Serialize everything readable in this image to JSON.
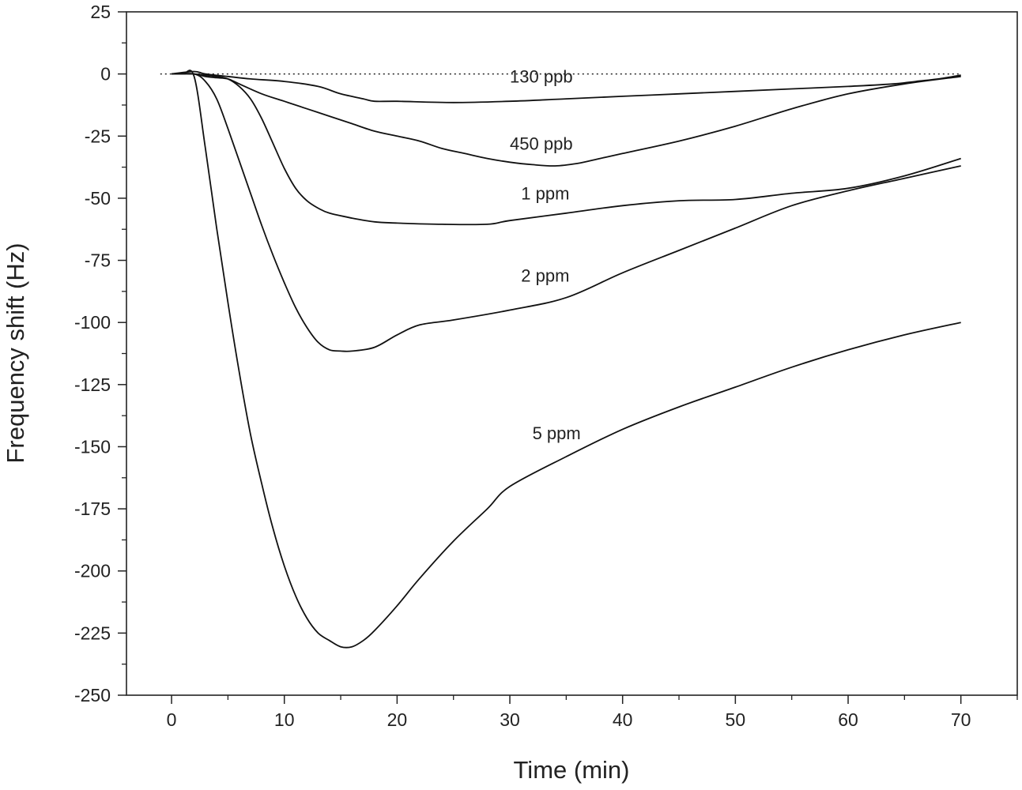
{
  "chart_data": {
    "type": "line",
    "title": "",
    "xlabel": "Time (min)",
    "ylabel": "Frequency shift (Hz)",
    "xlim": [
      -4,
      75
    ],
    "ylim": [
      -250,
      25
    ],
    "xticks": [
      0,
      10,
      20,
      30,
      40,
      50,
      60,
      70
    ],
    "yticks": [
      25,
      0,
      -25,
      -50,
      -75,
      -100,
      -125,
      -150,
      -175,
      -200,
      -225,
      -250
    ],
    "xtick_labels": [
      "0",
      "10",
      "20",
      "30",
      "40",
      "50",
      "60",
      "70"
    ],
    "ytick_labels": [
      "25",
      "0",
      "-25",
      "-50",
      "-75",
      "-100",
      "-125",
      "-150",
      "-175",
      "-200",
      "-225",
      "-250"
    ],
    "grid": false,
    "baseline": {
      "y": 0,
      "x_range": [
        -1,
        70
      ],
      "style": "dotted"
    },
    "series": [
      {
        "name": "130 ppb",
        "label_at": [
          30,
          -3.5
        ],
        "x": [
          0,
          2,
          3,
          5,
          7,
          10,
          13,
          15,
          17,
          18,
          20,
          25,
          30,
          35,
          40,
          45,
          50,
          55,
          60,
          64,
          66,
          68,
          70
        ],
        "y": [
          0,
          1,
          0,
          -1,
          -2,
          -3,
          -5,
          -8,
          -10,
          -11,
          -11,
          -11.5,
          -11,
          -10,
          -9,
          -8,
          -7,
          -6,
          -5,
          -4,
          -3,
          -2,
          -0.5
        ]
      },
      {
        "name": "450 ppb",
        "label_at": [
          30,
          -30.5
        ],
        "x": [
          0,
          2,
          3,
          4,
          5,
          6,
          8,
          10,
          12,
          14,
          16,
          18,
          20,
          22,
          24,
          26,
          28,
          30,
          32,
          34,
          36,
          38,
          40,
          45,
          50,
          55,
          60,
          65,
          70
        ],
        "y": [
          0,
          0,
          -1,
          -1.5,
          -2,
          -4,
          -8,
          -11,
          -14,
          -17,
          -20,
          -23,
          -25,
          -27,
          -30,
          -32,
          -34,
          -35.5,
          -36.5,
          -37,
          -36,
          -34,
          -32,
          -27,
          -21,
          -14,
          -8,
          -4,
          -1
        ]
      },
      {
        "name": "1 ppm",
        "label_at": [
          31,
          -50.5
        ],
        "x": [
          0,
          2,
          3,
          4,
          5,
          6,
          7,
          8,
          9,
          10,
          11,
          12,
          13,
          14,
          16,
          18,
          20,
          24,
          28,
          30,
          35,
          40,
          45,
          50,
          55,
          60,
          65,
          70
        ],
        "y": [
          0,
          0,
          -0.5,
          -1,
          -2,
          -5,
          -10,
          -18,
          -28,
          -38,
          -46,
          -51,
          -54,
          -56,
          -58,
          -59.5,
          -60,
          -60.5,
          -60.5,
          -59,
          -56,
          -53,
          -51,
          -50.5,
          -48,
          -46,
          -41,
          -34
        ]
      },
      {
        "name": "2 ppm",
        "label_at": [
          31,
          -83.5
        ],
        "x": [
          0,
          2,
          3,
          4,
          5,
          6,
          7,
          8,
          9,
          10,
          11,
          12,
          13,
          14,
          15,
          16,
          18,
          20,
          22,
          25,
          30,
          35,
          40,
          45,
          50,
          55,
          60,
          65,
          70
        ],
        "y": [
          0,
          0,
          -3,
          -10,
          -22,
          -35,
          -48,
          -61,
          -73,
          -84,
          -94,
          -102,
          -108,
          -111,
          -111.5,
          -111.5,
          -110,
          -105,
          -101,
          -99,
          -95,
          -90,
          -80,
          -71,
          -62,
          -53,
          -47,
          -42,
          -37
        ]
      },
      {
        "name": "5 ppm",
        "label_at": [
          32,
          -147
        ],
        "x": [
          0,
          1,
          2,
          3,
          4,
          5,
          6,
          7,
          8,
          9,
          10,
          11,
          12,
          13,
          14,
          15,
          16,
          17,
          18,
          20,
          22,
          25,
          28,
          30,
          35,
          40,
          45,
          50,
          55,
          60,
          65,
          70
        ],
        "y": [
          0,
          0,
          -1,
          -30,
          -62,
          -92,
          -120,
          -145,
          -165,
          -183,
          -198,
          -210,
          -219,
          -225,
          -228,
          -230.5,
          -230.5,
          -228,
          -224,
          -214,
          -203,
          -188,
          -175,
          -166,
          -154,
          -143,
          -134,
          -126,
          -118,
          -111,
          -105,
          -100
        ]
      }
    ]
  }
}
